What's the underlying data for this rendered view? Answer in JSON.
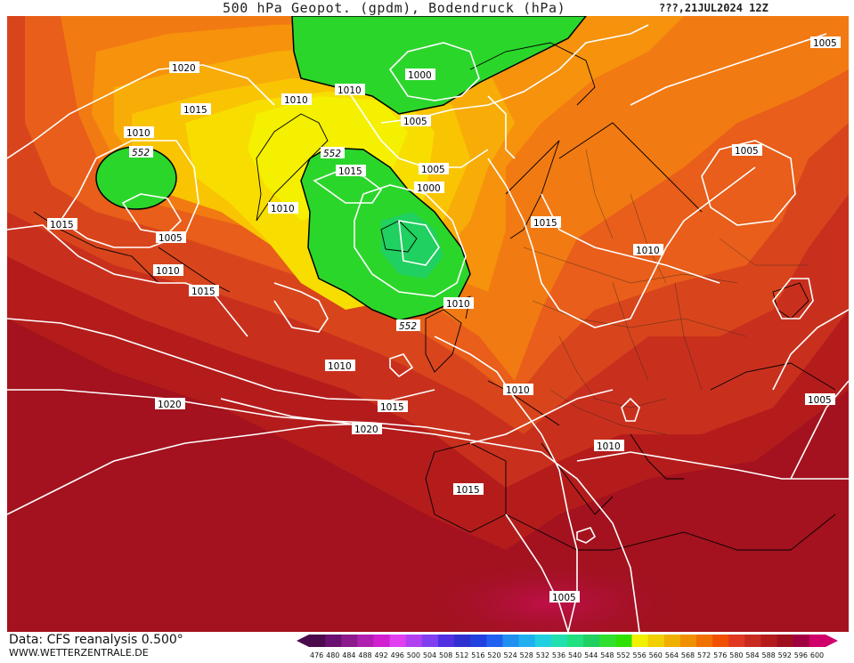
{
  "title": "500 hPa Geopot. (gpdm), Bodendruck (hPa)",
  "date_label": "???,21JUL2024 12Z",
  "footer": {
    "data_source": "Data: CFS reanalysis 0.500°",
    "website": "WWW.WETTERZENTRALE.DE"
  },
  "legend": {
    "values": [
      "476",
      "480",
      "484",
      "488",
      "492",
      "496",
      "500",
      "504",
      "508",
      "512",
      "516",
      "520",
      "524",
      "528",
      "532",
      "536",
      "540",
      "544",
      "548",
      "552",
      "556",
      "560",
      "564",
      "568",
      "572",
      "576",
      "580",
      "584",
      "588",
      "592",
      "596",
      "600"
    ],
    "colors": [
      "#4b0a4b",
      "#6a1070",
      "#8c1a8c",
      "#b020b0",
      "#d020d0",
      "#e040f0",
      "#b040f0",
      "#8040f0",
      "#5030e0",
      "#3030d0",
      "#2040e0",
      "#2060f0",
      "#2090f0",
      "#20b0f0",
      "#20d0e0",
      "#20e0b0",
      "#20e080",
      "#20d060",
      "#30e030",
      "#30e000",
      "#f0f000",
      "#f0d000",
      "#f0b000",
      "#f09000",
      "#f07000",
      "#f05000",
      "#e03820",
      "#c82a20",
      "#b41c1c",
      "#a00f1e",
      "#a00040",
      "#d0006a"
    ]
  },
  "labels": {
    "isobars": [
      {
        "text": "1020"
      },
      {
        "text": "1010"
      },
      {
        "text": "1015"
      },
      {
        "text": "1010"
      },
      {
        "text": "1010"
      },
      {
        "text": "1000"
      },
      {
        "text": "1005"
      },
      {
        "text": "1005"
      },
      {
        "text": "1015"
      },
      {
        "text": "1005"
      },
      {
        "text": "1000"
      },
      {
        "text": "1015"
      },
      {
        "text": "1005"
      },
      {
        "text": "1010"
      },
      {
        "text": "1010"
      },
      {
        "text": "1005"
      },
      {
        "text": "1015"
      },
      {
        "text": "1010"
      },
      {
        "text": "1015"
      },
      {
        "text": "1010"
      },
      {
        "text": "1020"
      },
      {
        "text": "1015"
      },
      {
        "text": "1020"
      },
      {
        "text": "1010"
      },
      {
        "text": "1005"
      },
      {
        "text": "1010"
      },
      {
        "text": "1015"
      },
      {
        "text": "1010"
      },
      {
        "text": "1005"
      }
    ],
    "height_labels": [
      {
        "text": "552"
      },
      {
        "text": "552"
      },
      {
        "text": "552"
      }
    ]
  }
}
